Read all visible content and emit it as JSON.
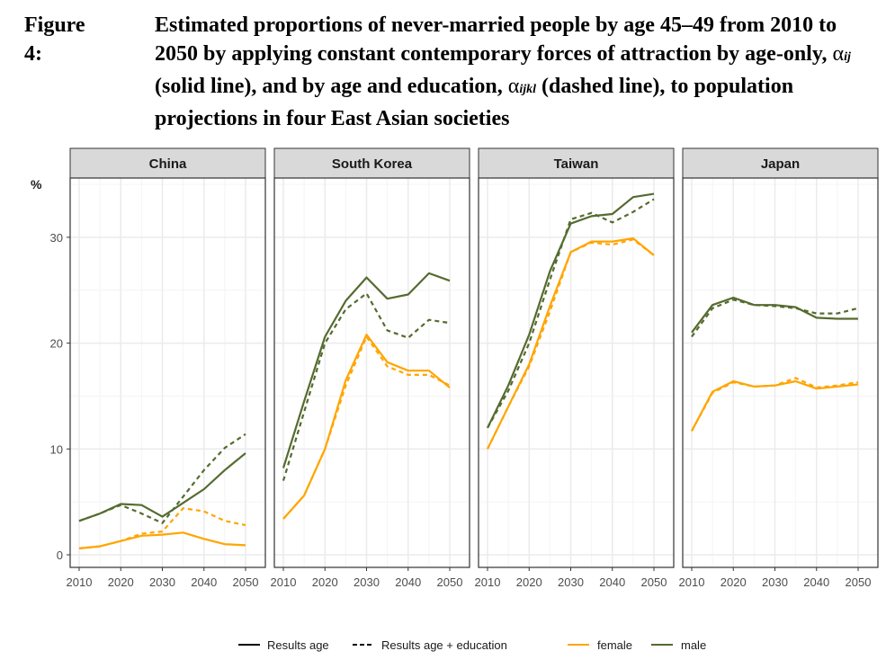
{
  "title": {
    "label": "Figure 4:",
    "part1": "Estimated proportions of never-married people by age 45–49 from 2010 to 2050 by applying constant contemporary forces of attraction by age-only, ",
    "alpha1": "α",
    "sub1": "ij",
    "part2": " (solid line), and by age and education, ",
    "alpha2": "α",
    "sub2": "ijkl",
    "part3": " (dashed line), to population projections in four East Asian societies"
  },
  "chart_data": {
    "type": "line",
    "ylabel": "%",
    "ylim": [
      -1,
      35.5
    ],
    "yticks": [
      0,
      10,
      20,
      30
    ],
    "xlim": [
      2010,
      2050
    ],
    "xticks": [
      2010,
      2020,
      2030,
      2040,
      2050
    ],
    "x": [
      2010,
      2015,
      2020,
      2025,
      2030,
      2035,
      2040,
      2045,
      2050
    ],
    "colors": {
      "female": "#FFA500",
      "male": "#556B2F"
    },
    "legend": {
      "linetype": [
        "Results age",
        "Results age + education"
      ],
      "sex": [
        "female",
        "male"
      ],
      "position": "bottom"
    },
    "panels": [
      {
        "name": "China",
        "series": [
          {
            "sex": "male",
            "type": "age",
            "values": [
              3.2,
              3.9,
              4.8,
              4.7,
              3.6,
              4.9,
              6.2,
              8.0,
              9.6
            ]
          },
          {
            "sex": "male",
            "type": "age + education",
            "values": [
              3.2,
              3.9,
              4.7,
              3.9,
              3.0,
              5.5,
              8.0,
              10.1,
              11.4
            ]
          },
          {
            "sex": "female",
            "type": "age",
            "values": [
              0.6,
              0.8,
              1.3,
              1.8,
              1.9,
              2.1,
              1.5,
              1.0,
              0.9
            ]
          },
          {
            "sex": "female",
            "type": "age + education",
            "values": [
              0.6,
              0.8,
              1.3,
              2.0,
              2.2,
              4.4,
              4.1,
              3.2,
              2.8
            ]
          }
        ]
      },
      {
        "name": "South Korea",
        "series": [
          {
            "sex": "male",
            "type": "age",
            "values": [
              8.2,
              14.5,
              20.6,
              24.0,
              26.2,
              24.2,
              24.6,
              26.6,
              25.9
            ]
          },
          {
            "sex": "male",
            "type": "age + education",
            "values": [
              7.0,
              13.5,
              20.0,
              23.2,
              24.7,
              21.2,
              20.5,
              22.2,
              21.9
            ]
          },
          {
            "sex": "female",
            "type": "age",
            "values": [
              3.4,
              5.6,
              10.0,
              16.5,
              20.8,
              18.2,
              17.4,
              17.4,
              15.8
            ]
          },
          {
            "sex": "female",
            "type": "age + education",
            "values": [
              3.4,
              5.6,
              10.0,
              16.0,
              20.6,
              17.8,
              17.0,
              17.0,
              16.0
            ]
          }
        ]
      },
      {
        "name": "Taiwan",
        "series": [
          {
            "sex": "male",
            "type": "age",
            "values": [
              12.0,
              16.0,
              20.8,
              26.8,
              31.3,
              32.0,
              32.2,
              33.8,
              34.1
            ]
          },
          {
            "sex": "male",
            "type": "age + education",
            "values": [
              12.0,
              15.5,
              20.0,
              26.0,
              31.7,
              32.3,
              31.4,
              32.4,
              33.6
            ]
          },
          {
            "sex": "female",
            "type": "age",
            "values": [
              10.0,
              14.0,
              18.0,
              23.5,
              28.6,
              29.6,
              29.6,
              29.9,
              28.3
            ]
          },
          {
            "sex": "female",
            "type": "age + education",
            "values": [
              10.0,
              14.0,
              17.8,
              23.0,
              28.6,
              29.5,
              29.3,
              29.8,
              28.3
            ]
          }
        ]
      },
      {
        "name": "Japan",
        "series": [
          {
            "sex": "male",
            "type": "age",
            "values": [
              21.0,
              23.6,
              24.3,
              23.6,
              23.6,
              23.4,
              22.4,
              22.3,
              22.3
            ]
          },
          {
            "sex": "male",
            "type": "age + education",
            "values": [
              20.6,
              23.3,
              24.1,
              23.6,
              23.5,
              23.3,
              22.8,
              22.8,
              23.3
            ]
          },
          {
            "sex": "female",
            "type": "age",
            "values": [
              11.7,
              15.4,
              16.4,
              15.9,
              16.0,
              16.4,
              15.7,
              15.9,
              16.1
            ]
          },
          {
            "sex": "female",
            "type": "age + education",
            "values": [
              11.7,
              15.3,
              16.3,
              15.9,
              16.0,
              16.7,
              15.8,
              16.0,
              16.3
            ]
          }
        ]
      }
    ]
  }
}
